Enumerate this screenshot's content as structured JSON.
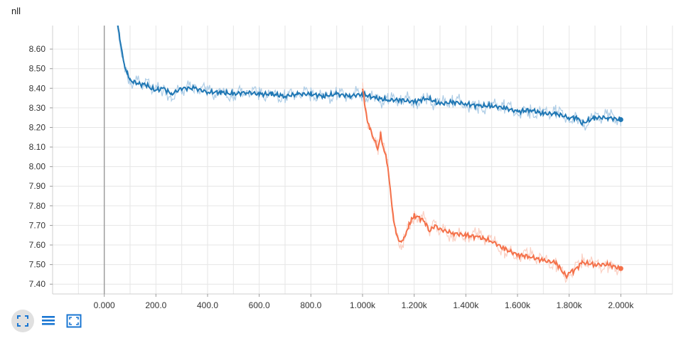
{
  "chart_data": {
    "type": "line",
    "title": "nll",
    "xlabel": "",
    "ylabel": "",
    "xlim": [
      -200,
      2200
    ],
    "ylim": [
      7.35,
      8.72
    ],
    "x_ticks": [
      0,
      200,
      400,
      600,
      800,
      1000,
      1200,
      1400,
      1600,
      1800,
      2000
    ],
    "x_tick_labels": [
      "0.000",
      "200.0",
      "400.0",
      "600.0",
      "800.0",
      "1.000k",
      "1.200k",
      "1.400k",
      "1.600k",
      "1.800k",
      "2.000k"
    ],
    "y_ticks": [
      7.4,
      7.5,
      7.6,
      7.7,
      7.8,
      7.9,
      8.0,
      8.1,
      8.2,
      8.3,
      8.4,
      8.5,
      8.6
    ],
    "y_tick_labels": [
      "7.40",
      "7.50",
      "7.60",
      "7.70",
      "7.80",
      "7.90",
      "8.00",
      "8.10",
      "8.20",
      "8.30",
      "8.40",
      "8.50",
      "8.60"
    ],
    "grid": true,
    "series": [
      {
        "color": "#1f77b4",
        "raw_color": "#aecde6",
        "x": [
          50,
          60,
          70,
          80,
          90,
          100,
          120,
          140,
          160,
          180,
          200,
          230,
          260,
          300,
          350,
          400,
          450,
          500,
          550,
          600,
          650,
          700,
          750,
          800,
          850,
          900,
          950,
          1000,
          1050,
          1100,
          1150,
          1200,
          1250,
          1300,
          1350,
          1400,
          1450,
          1500,
          1550,
          1600,
          1650,
          1700,
          1750,
          1800,
          1830,
          1850,
          1900,
          1950,
          2000
        ],
        "y": [
          8.75,
          8.65,
          8.57,
          8.5,
          8.47,
          8.44,
          8.43,
          8.42,
          8.42,
          8.4,
          8.39,
          8.4,
          8.37,
          8.4,
          8.4,
          8.38,
          8.38,
          8.37,
          8.38,
          8.37,
          8.37,
          8.36,
          8.37,
          8.37,
          8.36,
          8.37,
          8.36,
          8.37,
          8.35,
          8.34,
          8.34,
          8.33,
          8.35,
          8.32,
          8.33,
          8.32,
          8.31,
          8.31,
          8.3,
          8.28,
          8.29,
          8.27,
          8.27,
          8.25,
          8.25,
          8.22,
          8.25,
          8.25,
          8.24
        ]
      },
      {
        "color": "#f4714a",
        "raw_color": "#fbd0c3",
        "x": [
          1000,
          1010,
          1020,
          1030,
          1050,
          1060,
          1070,
          1080,
          1090,
          1100,
          1110,
          1120,
          1130,
          1140,
          1150,
          1160,
          1170,
          1180,
          1190,
          1200,
          1220,
          1240,
          1260,
          1280,
          1300,
          1350,
          1400,
          1450,
          1500,
          1550,
          1600,
          1650,
          1700,
          1750,
          1770,
          1790,
          1800,
          1820,
          1850,
          1900,
          1950,
          2000
        ],
        "y": [
          8.4,
          8.3,
          8.22,
          8.19,
          8.12,
          8.09,
          8.17,
          8.1,
          8.06,
          7.98,
          7.85,
          7.73,
          7.66,
          7.62,
          7.61,
          7.63,
          7.66,
          7.7,
          7.73,
          7.75,
          7.74,
          7.72,
          7.67,
          7.7,
          7.68,
          7.66,
          7.65,
          7.64,
          7.62,
          7.58,
          7.55,
          7.54,
          7.52,
          7.51,
          7.47,
          7.44,
          7.46,
          7.47,
          7.51,
          7.5,
          7.5,
          7.48
        ]
      }
    ]
  },
  "toolbar": {
    "items": [
      "fit-domain",
      "toggle-log-scale",
      "expand-chart"
    ]
  }
}
